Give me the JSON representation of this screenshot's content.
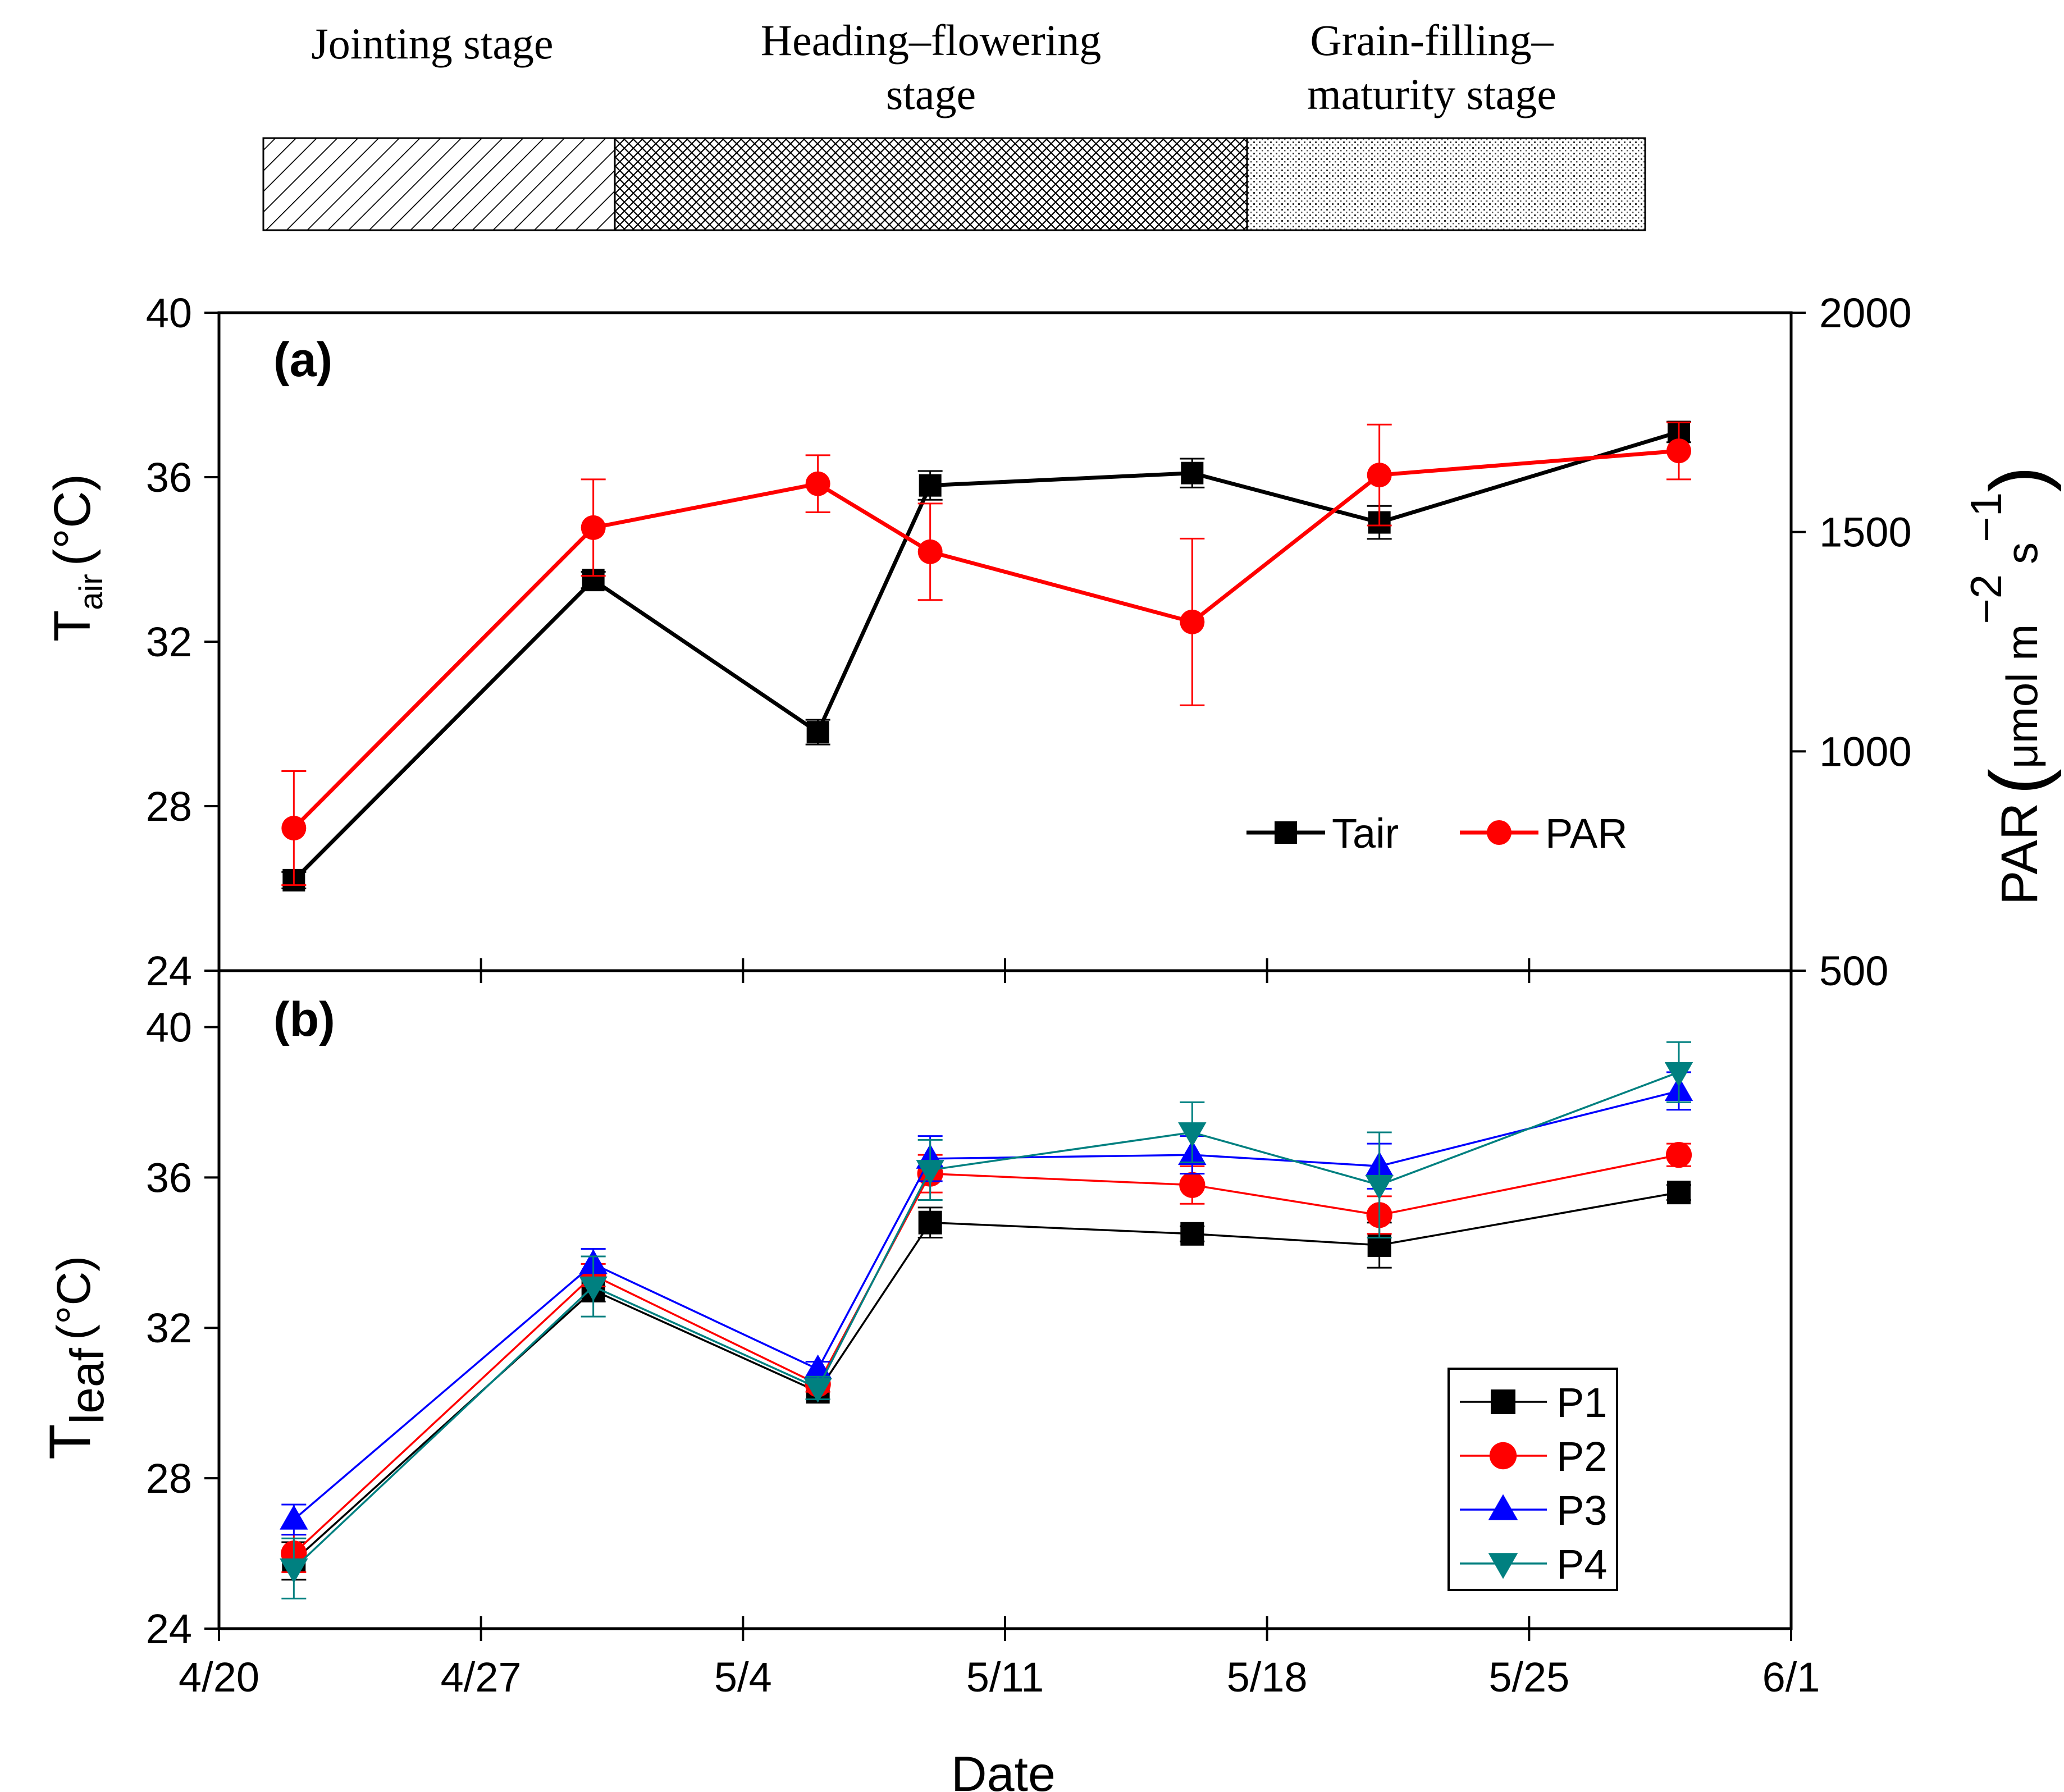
{
  "stages": [
    {
      "label_lines": [
        "Jointing stage"
      ],
      "pattern": "hatch"
    },
    {
      "label_lines": [
        "Heading–flowering",
        "stage"
      ],
      "pattern": "crosshatch"
    },
    {
      "label_lines": [
        "Grain-filling–",
        "maturity stage"
      ],
      "pattern": "dots"
    }
  ],
  "colors": {
    "black": "#000000",
    "red": "#ff0000",
    "blue": "#0000ff",
    "teal": "#008080"
  },
  "chart_data": [
    {
      "type": "line",
      "panel_label": "(a)",
      "x": [
        "4/22",
        "4/30",
        "5/6",
        "5/9",
        "5/16",
        "5/21",
        "5/29"
      ],
      "x_days": [
        2,
        10,
        16,
        19,
        26,
        31,
        39
      ],
      "xlim_days": [
        0,
        42
      ],
      "x_ticks": [
        "4/20",
        "4/27",
        "5/4",
        "5/11",
        "5/18",
        "5/25",
        "6/1"
      ],
      "ylabel_left": {
        "main": "T",
        "sub": "air",
        "unit": "(°C)"
      },
      "ylim_left": [
        24,
        40
      ],
      "y_ticks_left": [
        "24",
        "28",
        "32",
        "36",
        "40"
      ],
      "ylabel_right": {
        "main": "PAR",
        "unit": "μmol m",
        "exp1": "−2",
        "s": "s",
        "exp2": "−1"
      },
      "ylim_right": [
        500,
        2000
      ],
      "y_ticks_right": [
        "500",
        "1000",
        "1500",
        "2000"
      ],
      "legend_position": "lower-right",
      "series": [
        {
          "name": "Tair",
          "axis": "left",
          "color": "#000000",
          "marker": "square",
          "values": [
            26.2,
            33.5,
            29.8,
            35.8,
            36.1,
            34.9,
            37.1
          ],
          "errors": [
            0.2,
            0.2,
            0.3,
            0.35,
            0.35,
            0.4,
            0.25
          ]
        },
        {
          "name": "PAR",
          "axis": "right",
          "color": "#ff0000",
          "marker": "circle",
          "values": [
            825,
            1510,
            1610,
            1455,
            1295,
            1630,
            1685
          ],
          "errors": [
            130,
            110,
            65,
            110,
            190,
            115,
            65
          ]
        }
      ]
    },
    {
      "type": "line",
      "panel_label": "(b)",
      "x": [
        "4/22",
        "4/30",
        "5/6",
        "5/9",
        "5/16",
        "5/21",
        "5/29"
      ],
      "x_days": [
        2,
        10,
        16,
        19,
        26,
        31,
        39
      ],
      "xlim_days": [
        0,
        42
      ],
      "x_ticks": [
        "4/20",
        "4/27",
        "5/4",
        "5/11",
        "5/18",
        "5/25",
        "6/1"
      ],
      "xlabel": "Date",
      "ylabel": {
        "main": "T",
        "sub": "leaf",
        "unit": "(°C)"
      },
      "ylim": [
        24,
        41.5
      ],
      "y_ticks": [
        "24",
        "28",
        "32",
        "36",
        "40"
      ],
      "legend_position": "lower-right",
      "series": [
        {
          "name": "P1",
          "color": "#000000",
          "marker": "square",
          "values": [
            25.8,
            33.0,
            30.3,
            34.8,
            34.5,
            34.2,
            35.6
          ],
          "errors": [
            0.5,
            0.3,
            0.2,
            0.4,
            0.2,
            0.6,
            0.2
          ]
        },
        {
          "name": "P2",
          "color": "#ff0000",
          "marker": "circle",
          "values": [
            26.0,
            33.4,
            30.5,
            36.1,
            35.8,
            35.0,
            36.6
          ],
          "errors": [
            0.5,
            0.3,
            0.2,
            0.5,
            0.5,
            0.5,
            0.3
          ]
        },
        {
          "name": "P3",
          "color": "#0000ff",
          "marker": "triangle-up",
          "values": [
            26.9,
            33.7,
            30.9,
            36.5,
            36.6,
            36.3,
            38.3
          ],
          "errors": [
            0.4,
            0.4,
            0.2,
            0.6,
            0.5,
            0.6,
            0.5
          ]
        },
        {
          "name": "P4",
          "color": "#008080",
          "marker": "triangle-down",
          "values": [
            25.6,
            33.1,
            30.4,
            36.2,
            37.2,
            35.8,
            38.8
          ],
          "errors": [
            0.8,
            0.8,
            0.3,
            0.8,
            0.8,
            1.4,
            0.8
          ]
        }
      ]
    }
  ]
}
